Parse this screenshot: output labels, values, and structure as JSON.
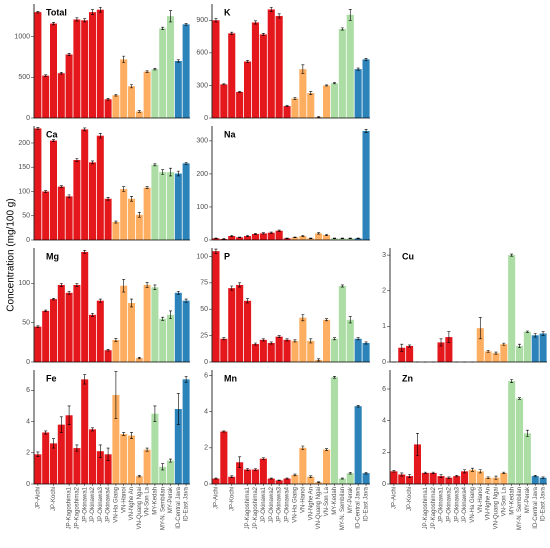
{
  "y_label": "Concentration (mg/100 g)",
  "categories": [
    "JP-Aichi",
    null,
    "JP-Kochi",
    null,
    "JP-Kagoshima1",
    "JP-Kagoshima2",
    "JP-Okinawa1",
    "JP-Okinawa2",
    "JP-Okinawa3",
    "JP-Okinawa4",
    "VN-Ha Giang",
    "VN-Hanoi",
    "VN-Nghe An",
    "VN-Quang Ngai",
    "VN-Son La",
    "MY-Kedah",
    "MY-N. Sembilan",
    "MY-Perak",
    "ID-Central Java",
    "ID-East Java"
  ],
  "colors": [
    "#e3171c",
    "#e3171c",
    "#e3171c",
    "#e3171c",
    "#e3171c",
    "#e3171c",
    "#e3171c",
    "#e3171c",
    "#e3171c",
    "#e3171c",
    "#fdae61",
    "#fdae61",
    "#fdae61",
    "#fdae61",
    "#fdae61",
    "#abdda4",
    "#abdda4",
    "#abdda4",
    "#2b83ba",
    "#2b83ba"
  ],
  "chart_data": [
    {
      "type": "bar",
      "title": "Total",
      "ylim": [
        0,
        1400
      ],
      "yticks": [
        0,
        500,
        1000
      ],
      "values": [
        1300,
        520,
        1160,
        550,
        780,
        1210,
        1200,
        1300,
        1330,
        230,
        280,
        720,
        390,
        80,
        570,
        600,
        1100,
        1250,
        700,
        1150
      ],
      "errors": [
        10,
        10,
        15,
        10,
        15,
        20,
        20,
        30,
        30,
        10,
        10,
        40,
        20,
        10,
        10,
        10,
        15,
        70,
        15,
        10
      ]
    },
    {
      "type": "bar",
      "title": "K",
      "ylim": [
        0,
        1050
      ],
      "yticks": [
        0,
        300,
        600,
        900
      ],
      "values": [
        900,
        310,
        780,
        240,
        520,
        880,
        770,
        1000,
        940,
        110,
        180,
        450,
        230,
        10,
        300,
        320,
        820,
        950,
        450,
        540
      ],
      "errors": [
        15,
        5,
        10,
        5,
        10,
        15,
        10,
        20,
        20,
        5,
        10,
        40,
        15,
        5,
        5,
        5,
        10,
        50,
        10,
        10
      ]
    },
    {
      "type": "bar",
      "title": "Ca",
      "ylim": [
        0,
        235
      ],
      "yticks": [
        0,
        50,
        100,
        150,
        200
      ],
      "values": [
        230,
        100,
        205,
        110,
        90,
        165,
        228,
        160,
        215,
        85,
        37,
        105,
        85,
        52,
        108,
        155,
        140,
        140,
        137,
        158
      ],
      "errors": [
        2,
        2,
        2,
        2,
        3,
        3,
        3,
        3,
        5,
        3,
        2,
        5,
        5,
        5,
        2,
        2,
        5,
        8,
        5,
        2
      ]
    },
    {
      "type": "bar",
      "title": "Na",
      "ylim": [
        0,
        345
      ],
      "yticks": [
        0,
        100,
        200,
        300
      ],
      "values": [
        5,
        3,
        12,
        8,
        12,
        18,
        20,
        22,
        28,
        5,
        8,
        12,
        5,
        20,
        15,
        5,
        5,
        5,
        5,
        330
      ],
      "errors": [
        1,
        1,
        2,
        1,
        2,
        2,
        2,
        2,
        2,
        1,
        1,
        2,
        1,
        2,
        2,
        1,
        1,
        1,
        1,
        5
      ]
    },
    {
      "type": "bar",
      "title": "Mg",
      "ylim": [
        0,
        145
      ],
      "yticks": [
        0,
        50,
        100
      ],
      "values": [
        45,
        65,
        80,
        98,
        88,
        98,
        140,
        60,
        78,
        15,
        28,
        97,
        75,
        5,
        98,
        95,
        55,
        60,
        88,
        78
      ],
      "errors": [
        1,
        1,
        1,
        2,
        2,
        2,
        2,
        2,
        2,
        1,
        2,
        8,
        5,
        1,
        3,
        3,
        2,
        5,
        2,
        2
      ]
    },
    {
      "type": "bar",
      "title": "P",
      "ylim": [
        0,
        108
      ],
      "yticks": [
        0,
        25,
        50,
        75,
        100
      ],
      "values": [
        105,
        22,
        70,
        73,
        58,
        17,
        21,
        18,
        24,
        21,
        20,
        42,
        20,
        2,
        40,
        22,
        72,
        40,
        22,
        18
      ],
      "errors": [
        2,
        1,
        2,
        2,
        2,
        1,
        1,
        1,
        1,
        1,
        1,
        3,
        2,
        1,
        1,
        1,
        1,
        3,
        1,
        1
      ]
    },
    {
      "type": "bar",
      "title": "Cu",
      "ylim": [
        0,
        3.2
      ],
      "yticks": [
        0,
        1,
        2,
        3
      ],
      "values": [
        0,
        0.4,
        0.45,
        0,
        0,
        0,
        0.55,
        0.7,
        0,
        0,
        0,
        0.95,
        0.3,
        0.25,
        0.5,
        3.0,
        0.45,
        0.85,
        0.75,
        0.8
      ],
      "errors": [
        0,
        0.1,
        0.03,
        0,
        0,
        0,
        0.1,
        0.15,
        0,
        0,
        0,
        0.3,
        0.03,
        0.03,
        0.03,
        0.03,
        0.05,
        0.02,
        0.05,
        0.05
      ]
    },
    {
      "type": "bar",
      "title": "Fe",
      "ylim": [
        0,
        7.3
      ],
      "yticks": [
        0,
        2,
        4,
        6
      ],
      "values": [
        1.9,
        3.3,
        2.6,
        3.8,
        4.4,
        2.3,
        6.7,
        3.5,
        2.1,
        1.9,
        5.7,
        3.2,
        3.1,
        0.5,
        2.2,
        4.5,
        1.1,
        1.5,
        4.8,
        6.7
      ],
      "errors": [
        0.15,
        0.1,
        0.3,
        0.5,
        0.6,
        0.2,
        0.3,
        0.1,
        0.4,
        0.4,
        1.5,
        0.1,
        0.2,
        0.05,
        0.1,
        0.5,
        0.2,
        0.1,
        1.0,
        0.2
      ]
    },
    {
      "type": "bar",
      "title": "Mn",
      "ylim": [
        0,
        6.3
      ],
      "yticks": [
        0,
        2,
        4,
        6
      ],
      "values": [
        0.3,
        2.9,
        0.4,
        1.2,
        0.8,
        0.8,
        1.4,
        0.3,
        0.2,
        0.3,
        0.5,
        2.0,
        0.4,
        0.1,
        1.9,
        5.9,
        0.3,
        0.6,
        4.3,
        0.6
      ],
      "errors": [
        0.03,
        0.03,
        0.05,
        0.3,
        0.05,
        0.05,
        0.05,
        0.03,
        0.02,
        0.03,
        0.05,
        0.1,
        0.05,
        0.02,
        0.05,
        0.05,
        0.03,
        0.05,
        0.05,
        0.05
      ]
    },
    {
      "type": "bar",
      "title": "Zn",
      "ylim": [
        0,
        7.2
      ],
      "yticks": [
        0,
        2,
        4,
        6
      ],
      "values": [
        0.8,
        0.6,
        0.5,
        2.5,
        0.7,
        0.7,
        0.5,
        0.4,
        0.5,
        0.8,
        0.9,
        0.8,
        0.4,
        0.4,
        0.7,
        6.5,
        5.4,
        3.2,
        0.5,
        0.4
      ],
      "errors": [
        0.05,
        0.1,
        0.1,
        0.7,
        0.05,
        0.05,
        0.1,
        0.05,
        0.05,
        0.1,
        0.1,
        0.1,
        0.05,
        0.1,
        0.05,
        0.1,
        0.05,
        0.2,
        0.05,
        0.05
      ]
    }
  ]
}
